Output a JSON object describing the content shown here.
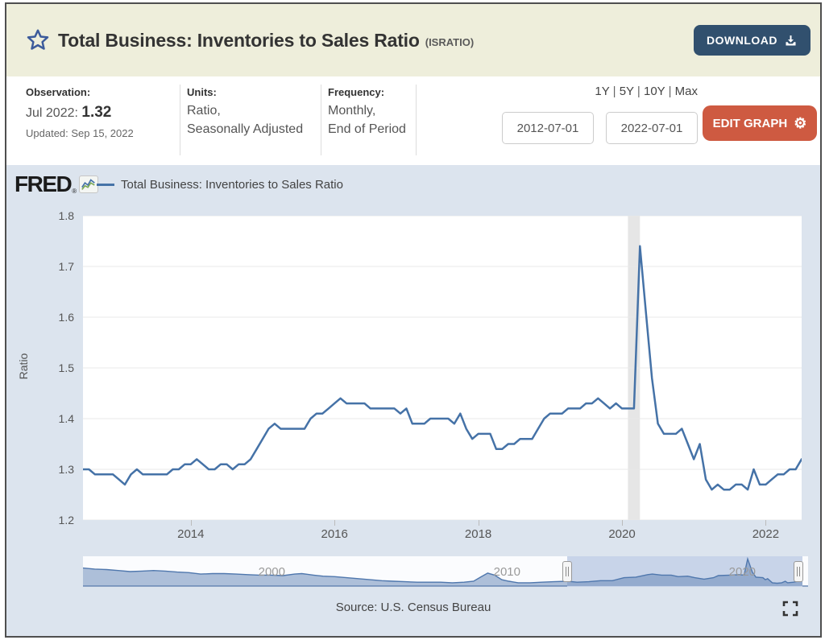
{
  "header": {
    "title": "Total Business: Inventories to Sales Ratio",
    "series_id": "(ISRATIO)",
    "download_label": "DOWNLOAD"
  },
  "info_bar": {
    "observation": {
      "label": "Observation:",
      "date": "Jul 2022:",
      "value": "1.32",
      "updated": "Updated: Sep 15, 2022"
    },
    "units": {
      "label": "Units:",
      "line1": "Ratio,",
      "line2": "Seasonally Adjusted"
    },
    "frequency": {
      "label": "Frequency:",
      "line1": "Monthly,",
      "line2": "End of Period"
    },
    "range_shortcuts": [
      "1Y",
      "5Y",
      "10Y",
      "Max"
    ],
    "date_start": "2012-07-01",
    "date_end": "2022-07-01",
    "edit_graph_label": "EDIT GRAPH"
  },
  "graph_panel": {
    "brand": "FRED",
    "registered_mark": "®",
    "legend_label": "Total Business: Inventories to Sales Ratio",
    "source": "Source: U.S. Census Bureau"
  },
  "colors": {
    "header_bg": "#eeeedb",
    "download_navy": "#31506e",
    "edit_orange": "#ce5a41",
    "panel_bg": "#dce4ee",
    "line_blue": "#4572a7",
    "recession_gray": "#e6e6e6",
    "slider_selection": "#c8d4e9"
  },
  "chart_data": [
    {
      "type": "line",
      "name": "Total Business: Inventories to Sales Ratio",
      "ylabel": "Ratio",
      "ylim": [
        1.2,
        1.8
      ],
      "yticks": [
        1.2,
        1.3,
        1.4,
        1.5,
        1.6,
        1.7,
        1.8
      ],
      "xticks": [
        2014,
        2016,
        2018,
        2020,
        2022
      ],
      "frequency": "monthly",
      "start": "2012-07",
      "end": "2022-07",
      "recession_band": [
        "2020-02",
        "2020-04"
      ],
      "grid": true,
      "legend_position": "top-left",
      "values": [
        1.3,
        1.3,
        1.29,
        1.29,
        1.29,
        1.29,
        1.28,
        1.27,
        1.29,
        1.3,
        1.29,
        1.29,
        1.29,
        1.29,
        1.29,
        1.3,
        1.3,
        1.31,
        1.31,
        1.32,
        1.31,
        1.3,
        1.3,
        1.31,
        1.31,
        1.3,
        1.31,
        1.31,
        1.32,
        1.34,
        1.36,
        1.38,
        1.39,
        1.38,
        1.38,
        1.38,
        1.38,
        1.38,
        1.4,
        1.41,
        1.41,
        1.42,
        1.43,
        1.44,
        1.43,
        1.43,
        1.43,
        1.43,
        1.42,
        1.42,
        1.42,
        1.42,
        1.42,
        1.41,
        1.42,
        1.39,
        1.39,
        1.39,
        1.4,
        1.4,
        1.4,
        1.4,
        1.39,
        1.41,
        1.38,
        1.36,
        1.37,
        1.37,
        1.37,
        1.34,
        1.34,
        1.35,
        1.35,
        1.36,
        1.36,
        1.36,
        1.38,
        1.4,
        1.41,
        1.41,
        1.41,
        1.42,
        1.42,
        1.42,
        1.43,
        1.43,
        1.44,
        1.43,
        1.42,
        1.43,
        1.42,
        1.42,
        1.42,
        1.74,
        1.61,
        1.48,
        1.39,
        1.37,
        1.37,
        1.37,
        1.38,
        1.35,
        1.32,
        1.35,
        1.28,
        1.26,
        1.27,
        1.26,
        1.26,
        1.27,
        1.27,
        1.26,
        1.3,
        1.27,
        1.27,
        1.28,
        1.29,
        1.29,
        1.3,
        1.3,
        1.32
      ]
    },
    {
      "type": "area",
      "name": "Full history range preview",
      "x_labels": [
        2000,
        2010,
        2020
      ],
      "x_range": [
        1992,
        2022.58
      ],
      "selected_range": [
        2012.58,
        2022.58
      ],
      "x": [
        1992.0,
        1992.5,
        1993.0,
        1993.5,
        1994.0,
        1994.5,
        1995.0,
        1995.5,
        1996.0,
        1996.5,
        1997.0,
        1997.5,
        1998.0,
        1998.5,
        1999.0,
        1999.5,
        2000.0,
        2000.5,
        2001.0,
        2001.3,
        2001.8,
        2002.2,
        2002.7,
        2003.2,
        2003.7,
        2004.2,
        2004.7,
        2005.2,
        2005.7,
        2006.2,
        2006.7,
        2007.2,
        2007.7,
        2008.2,
        2008.6,
        2008.9,
        2009.2,
        2009.5,
        2009.8,
        2010.1,
        2010.5,
        2011.0,
        2011.5,
        2012.0,
        2012.6,
        2013.0,
        2013.5,
        2014.0,
        2014.5,
        2015.0,
        2015.5,
        2016.0,
        2016.2,
        2016.6,
        2017.0,
        2017.3,
        2017.7,
        2018.0,
        2018.4,
        2018.8,
        2019.0,
        2019.5,
        2019.9,
        2020.1,
        2020.25,
        2020.45,
        2020.6,
        2020.9,
        2021.0,
        2021.1,
        2021.3,
        2021.5,
        2021.7,
        2021.85,
        2021.95,
        2022.2,
        2022.4,
        2022.58
      ],
      "values": [
        1.56,
        1.54,
        1.53,
        1.51,
        1.49,
        1.5,
        1.51,
        1.5,
        1.48,
        1.47,
        1.44,
        1.45,
        1.45,
        1.44,
        1.43,
        1.42,
        1.42,
        1.41,
        1.44,
        1.45,
        1.42,
        1.4,
        1.39,
        1.37,
        1.35,
        1.33,
        1.31,
        1.3,
        1.29,
        1.28,
        1.28,
        1.28,
        1.27,
        1.28,
        1.3,
        1.38,
        1.46,
        1.42,
        1.33,
        1.3,
        1.27,
        1.27,
        1.28,
        1.29,
        1.3,
        1.28,
        1.29,
        1.31,
        1.31,
        1.37,
        1.38,
        1.43,
        1.44,
        1.42,
        1.42,
        1.39,
        1.4,
        1.37,
        1.34,
        1.37,
        1.41,
        1.42,
        1.43,
        1.42,
        1.74,
        1.48,
        1.38,
        1.37,
        1.33,
        1.35,
        1.27,
        1.26,
        1.27,
        1.3,
        1.27,
        1.28,
        1.3,
        1.32
      ]
    }
  ]
}
